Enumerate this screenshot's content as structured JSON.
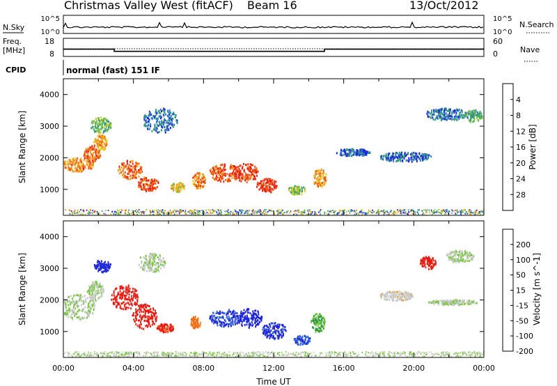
{
  "header": {
    "title": "Christmas Valley West (fitACF)",
    "beam": "Beam 16",
    "date": "13/Oct/2012"
  },
  "sky_panel": {
    "left_label": "N.Sky",
    "right_label": "N.Search",
    "left_ticks": [
      "10^5",
      "10^0"
    ],
    "right_ticks": [
      "10^5",
      "10^0"
    ]
  },
  "freq_panel": {
    "left_label_line1": "Freq.",
    "left_label_line2": "[MHz]",
    "right_label": "Nave",
    "left_ticks": [
      "18",
      "8"
    ],
    "right_ticks": [
      "60",
      "0"
    ],
    "freq_steps": [
      {
        "start_hour": 0.0,
        "end_hour": 2.9,
        "freq_mhz": 12.0
      },
      {
        "start_hour": 2.9,
        "end_hour": 14.9,
        "freq_mhz": 10.8
      },
      {
        "start_hour": 14.9,
        "end_hour": 24.0,
        "freq_mhz": 12.0
      }
    ]
  },
  "cpid": {
    "label": "CPID",
    "value": "normal (fast) 151 IF"
  },
  "chart_data": [
    {
      "type": "heatmap",
      "name": "power",
      "ylabel": "Slant Range [km]",
      "xlabel": "",
      "xlim": [
        0,
        24
      ],
      "ylim": [
        180,
        4500
      ],
      "yticks": [
        "1000",
        "2000",
        "3000",
        "4000"
      ],
      "colorbar_label": "Power [dB]",
      "colorbar_ticks": [
        "4",
        "8",
        "12",
        "16",
        "20",
        "24",
        "28"
      ],
      "colorbar_range": [
        0,
        30
      ],
      "colorbar_colors": [
        "#1f28d8",
        "#2d7fbf",
        "#35a070",
        "#78c040",
        "#e6c82a",
        "#f59a1e",
        "#f05a14",
        "#e61e14"
      ],
      "blobs": [
        {
          "t": 0.8,
          "r": 1800,
          "dt": 0.9,
          "dr": 220,
          "v": 22
        },
        {
          "t": 1.6,
          "r": 2150,
          "dt": 0.5,
          "dr": 250,
          "v": 24
        },
        {
          "t": 2.1,
          "r": 2500,
          "dt": 0.4,
          "dr": 250,
          "v": 20
        },
        {
          "t": 3.8,
          "r": 1650,
          "dt": 0.7,
          "dr": 300,
          "v": 24
        },
        {
          "t": 4.8,
          "r": 1200,
          "dt": 0.6,
          "dr": 230,
          "v": 26
        },
        {
          "t": 6.5,
          "r": 1100,
          "dt": 0.4,
          "dr": 150,
          "v": 18
        },
        {
          "t": 7.7,
          "r": 1300,
          "dt": 0.4,
          "dr": 250,
          "v": 22
        },
        {
          "t": 9.2,
          "r": 1550,
          "dt": 0.9,
          "dr": 280,
          "v": 25
        },
        {
          "t": 10.4,
          "r": 1550,
          "dt": 0.7,
          "dr": 300,
          "v": 26
        },
        {
          "t": 11.6,
          "r": 1150,
          "dt": 0.6,
          "dr": 220,
          "v": 27
        },
        {
          "t": 13.3,
          "r": 1000,
          "dt": 0.5,
          "dr": 150,
          "v": 14
        },
        {
          "t": 14.6,
          "r": 1400,
          "dt": 0.4,
          "dr": 300,
          "v": 20
        },
        {
          "t": 2.1,
          "r": 3050,
          "dt": 0.6,
          "dr": 250,
          "v": 12
        },
        {
          "t": 5.5,
          "r": 3200,
          "dt": 1.0,
          "dr": 400,
          "v": 5
        },
        {
          "t": 16.5,
          "r": 2200,
          "dt": 1.0,
          "dr": 120,
          "v": 4
        },
        {
          "t": 19.5,
          "r": 2050,
          "dt": 1.5,
          "dr": 150,
          "v": 5
        },
        {
          "t": 21.8,
          "r": 3400,
          "dt": 1.2,
          "dr": 200,
          "v": 6
        },
        {
          "t": 23.4,
          "r": 3350,
          "dt": 0.5,
          "dr": 200,
          "v": 10
        }
      ]
    },
    {
      "type": "heatmap",
      "name": "velocity",
      "ylabel": "Slant Range [km]",
      "xlabel": "Time UT",
      "xlim": [
        0,
        24
      ],
      "ylim": [
        180,
        4500
      ],
      "yticks": [
        "1000",
        "2000",
        "3000",
        "4000"
      ],
      "xticks": [
        "00:00",
        "04:00",
        "08:00",
        "12:00",
        "16:00",
        "20:00",
        "00:00"
      ],
      "colorbar_label": "Velocity [m s^-1]",
      "colorbar_ticks": [
        "200",
        "100",
        "50",
        "15",
        "-15",
        "-50",
        "-100",
        "-200"
      ],
      "colorbar_range": [
        -250,
        250
      ],
      "colorbar_colors": [
        "#1f28d8",
        "#3a6ed4",
        "#2e9a3a",
        "#78c840",
        "#c8c8c8",
        "#f0a020",
        "#f07018",
        "#e61e14"
      ],
      "blobs": [
        {
          "t": 0.8,
          "r": 1800,
          "dt": 1.0,
          "dr": 400,
          "v": 0
        },
        {
          "t": 1.8,
          "r": 2300,
          "dt": 0.5,
          "dr": 300,
          "v": 0
        },
        {
          "t": 3.5,
          "r": 2100,
          "dt": 0.8,
          "dr": 400,
          "v": -220
        },
        {
          "t": 4.6,
          "r": 1500,
          "dt": 0.7,
          "dr": 400,
          "v": -220
        },
        {
          "t": 5.8,
          "r": 1150,
          "dt": 0.5,
          "dr": 150,
          "v": -200
        },
        {
          "t": 7.5,
          "r": 1300,
          "dt": 0.3,
          "dr": 200,
          "v": -150
        },
        {
          "t": 9.2,
          "r": 1450,
          "dt": 0.9,
          "dr": 280,
          "v": 200
        },
        {
          "t": 10.6,
          "r": 1450,
          "dt": 0.7,
          "dr": 300,
          "v": 220
        },
        {
          "t": 12.0,
          "r": 1050,
          "dt": 0.7,
          "dr": 260,
          "v": 210
        },
        {
          "t": 13.6,
          "r": 750,
          "dt": 0.5,
          "dr": 150,
          "v": 180
        },
        {
          "t": 14.5,
          "r": 1300,
          "dt": 0.4,
          "dr": 300,
          "v": 60
        },
        {
          "t": 2.2,
          "r": 3100,
          "dt": 0.5,
          "dr": 200,
          "v": 220
        },
        {
          "t": 5.0,
          "r": 3200,
          "dt": 0.8,
          "dr": 300,
          "v": 0
        },
        {
          "t": 19.0,
          "r": 2150,
          "dt": 1.0,
          "dr": 150,
          "v": -40
        },
        {
          "t": 20.8,
          "r": 3200,
          "dt": 0.5,
          "dr": 200,
          "v": -220
        },
        {
          "t": 22.6,
          "r": 3400,
          "dt": 0.8,
          "dr": 200,
          "v": 0
        },
        {
          "t": 22.2,
          "r": 1950,
          "dt": 1.4,
          "dr": 80,
          "v": 0
        }
      ]
    }
  ]
}
